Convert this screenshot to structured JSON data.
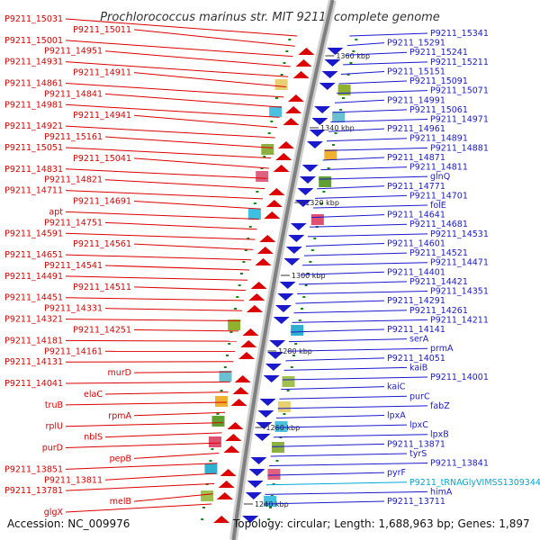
{
  "title": "Prochlorococcus marinus str. MIT 9211, complete genome",
  "footer": {
    "accession": "Accession: NC_009976",
    "topology": "Topology: circular; Length: 1,688,963 bp; Genes: 1,897"
  },
  "colors": {
    "forward": "#dd0000",
    "reverse": "#1a1acc",
    "rna": "#00a8d8",
    "backbone": "#808080",
    "tick": "#118811"
  },
  "ticks": [
    "1360 kbp",
    "1340 kbp",
    "1320 kbp",
    "1300 kbp",
    "1280 kbp",
    "1260 kbp",
    "1240 kbp"
  ],
  "left_labels": [
    "P9211_15031",
    "P9211_15011",
    "P9211_15001",
    "P9211_14951",
    "P9211_14931",
    "P9211_14911",
    "P9211_14861",
    "P9211_14841",
    "P9211_14981",
    "P9211_14941",
    "P9211_14921",
    "P9211_15161",
    "P9211_15051",
    "P9211_15041",
    "P9211_14831",
    "P9211_14821",
    "P9211_14711",
    "P9211_14691",
    "apt",
    "P9211_14751",
    "P9211_14591",
    "P9211_14561",
    "P9211_14651",
    "P9211_14541",
    "P9211_14491",
    "P9211_14511",
    "P9211_14451",
    "P9211_14331",
    "P9211_14321",
    "P9211_14251",
    "P9211_14181",
    "P9211_14161",
    "P9211_14131",
    "murD",
    "P9211_14041",
    "elaC",
    "truB",
    "rpmA",
    "rplU",
    "nblS",
    "purD",
    "pepB",
    "P9211_13851",
    "P9211_13811",
    "P9211_13781",
    "melB",
    "glgX"
  ],
  "right_labels": [
    "P9211_15341",
    "P9211_15291",
    "P9211_15241",
    "P9211_15211",
    "P9211_15151",
    "P9211_15091",
    "P9211_15071",
    "P9211_14991",
    "P9211_15061",
    "P9211_14971",
    "P9211_14961",
    "P9211_14891",
    "P9211_14881",
    "P9211_14871",
    "P9211_14811",
    "glnQ",
    "P9211_14771",
    "P9211_14701",
    "folE",
    "P9211_14641",
    "P9211_14681",
    "P9211_14531",
    "P9211_14601",
    "P9211_14521",
    "P9211_14471",
    "P9211_14401",
    "P9211_14421",
    "P9211_14351",
    "P9211_14291",
    "P9211_14261",
    "P9211_14211",
    "P9211_14141",
    "serA",
    "prmA",
    "P9211_14051",
    "kaiB",
    "P9211_14001",
    "kaiC",
    "purC",
    "fabZ",
    "lpxA",
    "lpxC",
    "lpxB",
    "P9211_13871",
    "tyrS",
    "P9211_13841",
    "pyrF",
    "P9211_tRNAGlyVIMSS1309344",
    "himA",
    "P9211_13711"
  ]
}
